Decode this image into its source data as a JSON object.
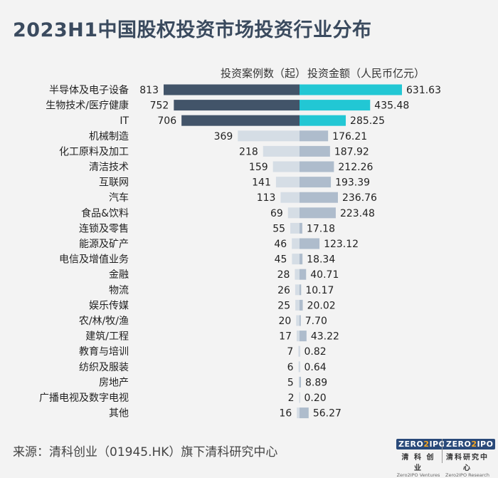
{
  "title": "2023H1中国股权投资市场投资行业分布",
  "legend": {
    "count_label": "投资案例数（起）",
    "amount_label": "投资金额（人民币亿元）"
  },
  "source": "来源：清科创业（01945.HK）旗下清科研究中心",
  "logos": [
    {
      "mark_left": "ZERO",
      "mark_two": "2",
      "mark_right": "IPO",
      "cn": "清 科 创 业",
      "en": "Zero2IPO Ventures"
    },
    {
      "mark_left": "ZERO",
      "mark_two": "2",
      "mark_right": "IPO",
      "cn": "清科研究中心",
      "en": "Zero2IPO Research"
    }
  ],
  "colors": {
    "count_top": "#425469",
    "amount_top": "#22c7d4",
    "count_other": "#d5dde5",
    "amount_other": "#aebccc",
    "title": "#3a4a5e"
  },
  "chart_data": {
    "type": "bar",
    "orientation": "horizontal-butterfly",
    "title": "2023H1中国股权投资市场投资行业分布",
    "categories": [
      "半导体及电子设备",
      "生物技术/医疗健康",
      "IT",
      "机械制造",
      "化工原料及加工",
      "清洁技术",
      "互联网",
      "汽车",
      "食品&饮料",
      "连锁及零售",
      "能源及矿产",
      "电信及增值业务",
      "金融",
      "物流",
      "娱乐传媒",
      "农/林/牧/渔",
      "建筑/工程",
      "教育与培训",
      "纺织及服装",
      "房地产",
      "广播电视及数字电视",
      "其他"
    ],
    "series": [
      {
        "name": "投资案例数（起）",
        "values": [
          813,
          752,
          706,
          369,
          218,
          159,
          141,
          113,
          69,
          55,
          46,
          45,
          28,
          26,
          25,
          20,
          17,
          7,
          6,
          5,
          2,
          16
        ],
        "labels": [
          "813",
          "752",
          "706",
          "369",
          "218",
          "159",
          "141",
          "113",
          "69",
          "55",
          "46",
          "45",
          "28",
          "26",
          "25",
          "20",
          "17",
          "7",
          "6",
          "5",
          "2",
          "16"
        ]
      },
      {
        "name": "投资金额（人民币亿元）",
        "values": [
          631.63,
          435.48,
          285.25,
          176.21,
          187.92,
          212.26,
          193.39,
          236.76,
          223.48,
          17.18,
          123.12,
          18.34,
          40.71,
          10.17,
          20.02,
          7.7,
          43.22,
          0.82,
          0.64,
          8.89,
          0.2,
          56.27
        ],
        "labels": [
          "631.63",
          "435.48",
          "285.25",
          "176.21",
          "187.92",
          "212.26",
          "193.39",
          "236.76",
          "223.48",
          "17.18",
          "123.12",
          "18.34",
          "40.71",
          "10.17",
          "20.02",
          "7.70",
          "43.22",
          "0.82",
          "0.64",
          "8.89",
          "0.20",
          "56.27"
        ]
      }
    ],
    "highlighted_count": 3
  }
}
